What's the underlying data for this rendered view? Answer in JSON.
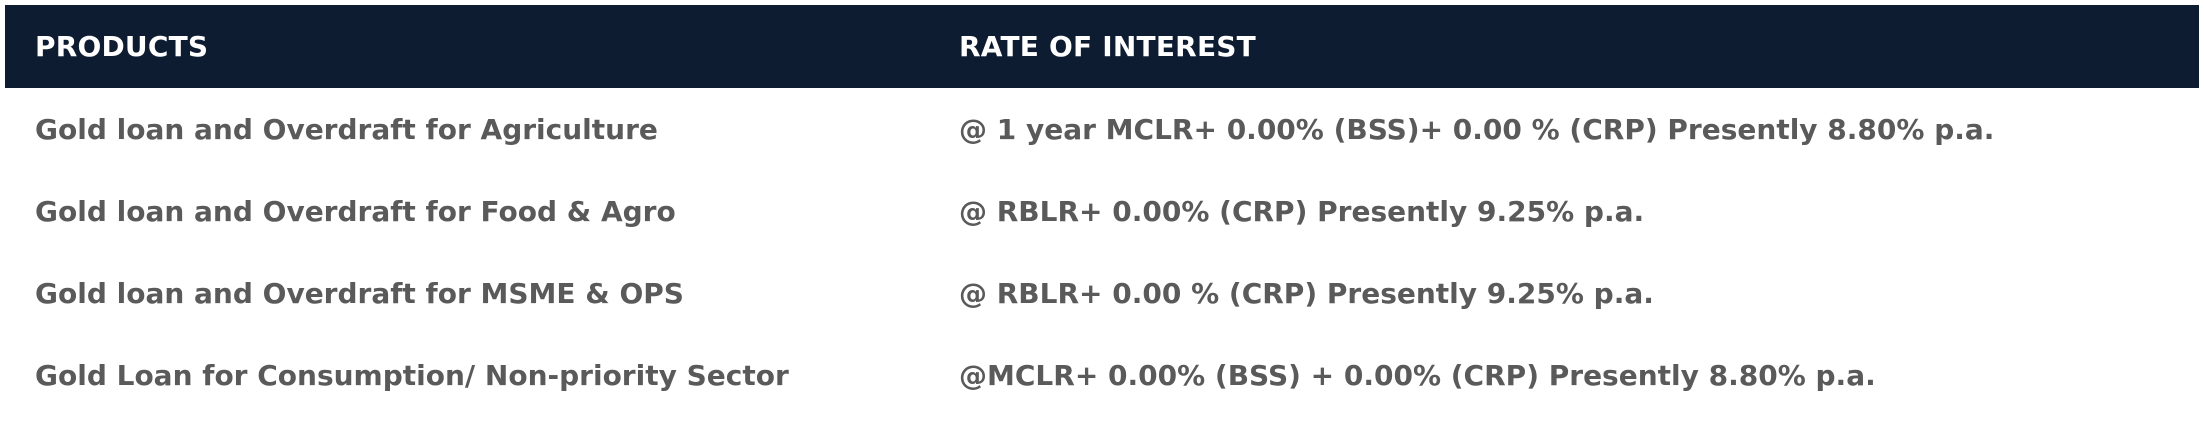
{
  "table": {
    "headers": {
      "products": "PRODUCTS",
      "rate": "RATE OF INTEREST"
    },
    "rows": [
      {
        "product": "Gold loan and Overdraft for Agriculture",
        "rate": "@ 1 year MCLR+ 0.00% (BSS)+ 0.00 % (CRP) Presently 8.80% p.a."
      },
      {
        "product": "Gold loan and Overdraft for Food & Agro",
        "rate": "@ RBLR+ 0.00% (CRP) Presently 9.25% p.a."
      },
      {
        "product": "Gold loan and Overdraft for MSME & OPS",
        "rate": "@ RBLR+ 0.00 % (CRP) Presently 9.25% p.a."
      },
      {
        "product": "Gold Loan for Consumption/ Non-priority Sector",
        "rate": "@MCLR+ 0.00% (BSS) + 0.00% (CRP) Presently 8.80% p.a."
      }
    ]
  },
  "colors": {
    "header_bg": "#0e1c32",
    "header_text": "#ffffff",
    "body_text": "#5a5a5a",
    "page_bg": "#ffffff"
  }
}
